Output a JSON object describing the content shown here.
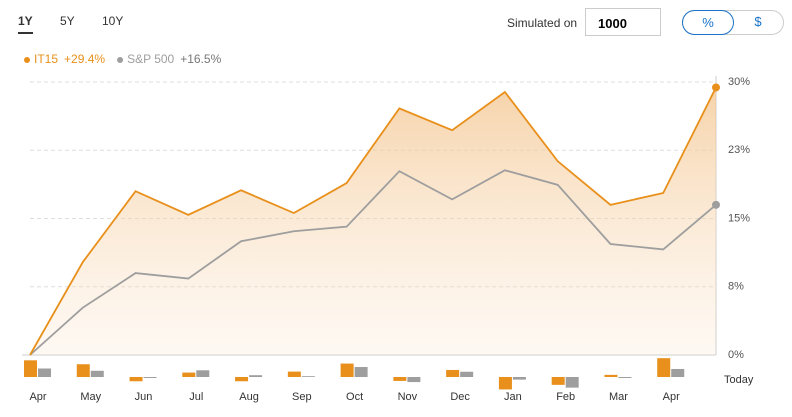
{
  "controls": {
    "tabs": [
      "1Y",
      "5Y",
      "10Y"
    ],
    "selected_tab": 0,
    "simulated_label": "Simulated on",
    "amount": "1000",
    "modes": [
      "%",
      "$"
    ],
    "selected_mode": 0
  },
  "chart_data": {
    "type": "line",
    "categories": [
      "Apr",
      "May",
      "Jun",
      "Jul",
      "Aug",
      "Sep",
      "Oct",
      "Nov",
      "Dec",
      "Jan",
      "Feb",
      "Mar",
      "Apr",
      "Today"
    ],
    "series": [
      {
        "name": "IT15",
        "legend_value": "+29.4%",
        "color": "#e8901b",
        "area": true,
        "values": [
          0,
          10.2,
          18.0,
          15.4,
          18.1,
          15.6,
          18.9,
          27.1,
          24.7,
          28.9,
          21.3,
          16.5,
          17.8,
          29.4
        ],
        "bar_values": [
          10.2,
          7.8,
          -2.6,
          2.7,
          -2.6,
          3.3,
          8.2,
          -2.4,
          4.3,
          -7.6,
          -4.8,
          1.3,
          11.5
        ]
      },
      {
        "name": "S&P 500",
        "legend_value": "+16.5%",
        "color": "#9e9e9e",
        "area": false,
        "values": [
          0,
          5.2,
          9.0,
          8.4,
          12.5,
          13.6,
          14.1,
          20.2,
          17.1,
          20.3,
          18.7,
          12.2,
          11.6,
          16.5
        ],
        "bar_values": [
          5.2,
          3.8,
          -0.6,
          4.1,
          1.1,
          0.5,
          6.1,
          -3.1,
          3.2,
          -1.6,
          -6.5,
          -0.6,
          4.9
        ]
      }
    ],
    "ylim": [
      0,
      30
    ],
    "yticks": [
      {
        "value": 0,
        "label": "0%"
      },
      {
        "value": 7.5,
        "label": "8%"
      },
      {
        "value": 15,
        "label": "15%"
      },
      {
        "value": 22.5,
        "label": "23%"
      },
      {
        "value": 30,
        "label": "30%"
      }
    ],
    "bar_ylim": [
      -11,
      11
    ],
    "grid": true
  }
}
